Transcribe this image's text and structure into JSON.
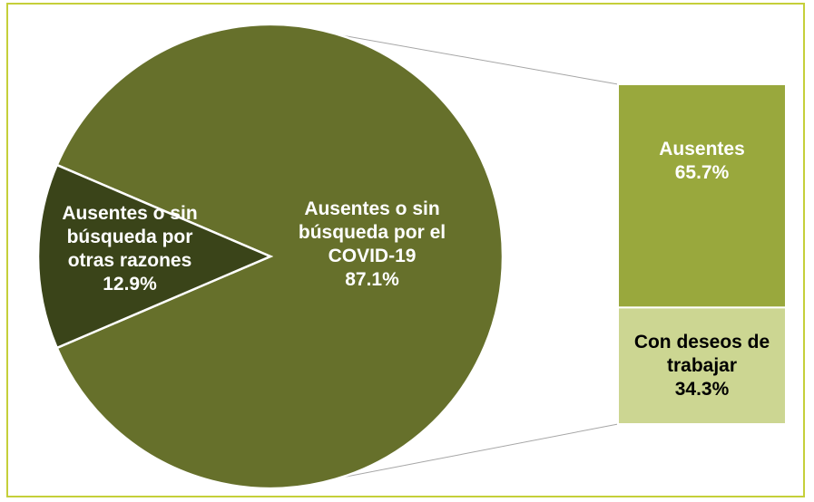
{
  "chart_data": {
    "type": "bar-of-pie",
    "categories": [
      "Ausentes o sin búsqueda por el COVID-19",
      "Ausentes o sin búsqueda por otras razones"
    ],
    "values": [
      87.1,
      12.9
    ],
    "value_labels": [
      "87.1%",
      "12.9%"
    ],
    "colors": [
      "#66702b",
      "#3a4419"
    ],
    "breakdown": {
      "categories": [
        "Ausentes",
        "Con deseos de trabajar"
      ],
      "values": [
        65.7,
        34.3
      ],
      "value_labels": [
        "65.7%",
        "34.3%"
      ],
      "colors": [
        "#99a83d",
        "#ccd692"
      ]
    }
  }
}
